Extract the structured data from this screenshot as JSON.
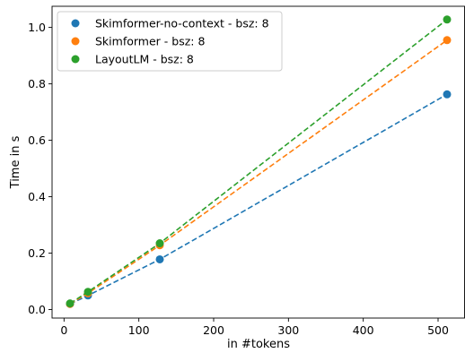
{
  "chart_data": {
    "type": "scatter",
    "title": "",
    "xlabel": "in #tokens",
    "ylabel": "Time in s",
    "xlim": [
      -16,
      536
    ],
    "ylim": [
      -0.03,
      1.075
    ],
    "xticks": [
      0,
      100,
      200,
      300,
      400,
      500
    ],
    "yticks": [
      0.0,
      0.2,
      0.4,
      0.6,
      0.8,
      1.0
    ],
    "xtick_labels": [
      "0",
      "100",
      "200",
      "300",
      "400",
      "500"
    ],
    "ytick_labels": [
      "0.0",
      "0.2",
      "0.4",
      "0.6",
      "0.8",
      "1.0"
    ],
    "grid": false,
    "legend_position": "top-left",
    "series": [
      {
        "name": "Skimformer-no-context - bsz: 8",
        "color": "#1f77b4",
        "line_style": "dashed",
        "x": [
          8,
          32,
          128,
          512
        ],
        "y": [
          0.02,
          0.05,
          0.178,
          0.763
        ]
      },
      {
        "name": "Skimformer - bsz: 8",
        "color": "#ff7f0e",
        "line_style": "dashed",
        "x": [
          8,
          32,
          128,
          512
        ],
        "y": [
          0.02,
          0.058,
          0.228,
          0.955
        ]
      },
      {
        "name": "LayoutLM - bsz: 8",
        "color": "#2ca02c",
        "line_style": "dashed",
        "x": [
          8,
          32,
          128,
          512
        ],
        "y": [
          0.022,
          0.063,
          0.235,
          1.028
        ]
      }
    ]
  }
}
